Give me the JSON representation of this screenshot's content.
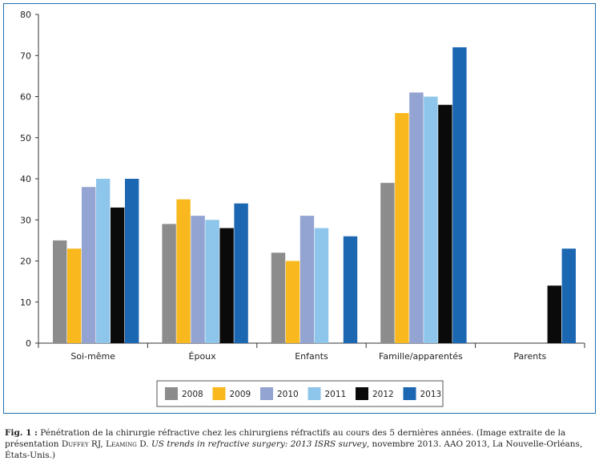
{
  "chart_data": {
    "type": "bar",
    "categories": [
      "Soi-même",
      "Époux",
      "Enfants",
      "Famille/apparentés",
      "Parents"
    ],
    "series": [
      {
        "name": "2008",
        "color": "#8c8c8c",
        "values": [
          25,
          29,
          22,
          39,
          null
        ]
      },
      {
        "name": "2009",
        "color": "#f9b91e",
        "values": [
          23,
          35,
          20,
          56,
          null
        ]
      },
      {
        "name": "2010",
        "color": "#93a3d2",
        "values": [
          38,
          31,
          31,
          61,
          null
        ]
      },
      {
        "name": "2011",
        "color": "#8ec5ea",
        "values": [
          40,
          30,
          28,
          60,
          null
        ]
      },
      {
        "name": "2012",
        "color": "#0a0a0a",
        "values": [
          33,
          28,
          null,
          58,
          14
        ]
      },
      {
        "name": "2013",
        "color": "#1b67b2",
        "values": [
          40,
          34,
          26,
          72,
          23
        ]
      }
    ],
    "ylim": [
      0,
      80
    ],
    "yticks": [
      0,
      10,
      20,
      30,
      40,
      50,
      60,
      70,
      80
    ],
    "legend": "bottom",
    "grid": false
  },
  "caption": {
    "lead": "Fig. 1 :",
    "text1": " Pénétration de la chirurgie réfractive chez les chirurgiens réfractifs au cours des 5 dernières années. (Image extraite de la présentation ",
    "authors": "Duffey RJ, Leaming D.",
    "text2": " ",
    "title": "US trends in refractive surgery: 2013 ISRS survey",
    "text3": ", novembre 2013. AAO 2013, La Nouvelle-Orléans, États-Unis.)"
  }
}
